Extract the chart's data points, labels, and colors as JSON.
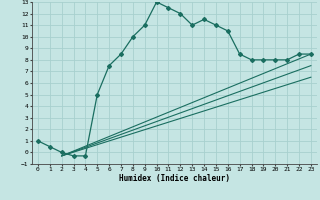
{
  "title": "",
  "xlabel": "Humidex (Indice chaleur)",
  "background_color": "#c5e5e3",
  "grid_color": "#a8d0ce",
  "line_color": "#1a6e60",
  "xlim": [
    -0.5,
    23.5
  ],
  "ylim": [
    -1,
    13
  ],
  "xticks": [
    0,
    1,
    2,
    3,
    4,
    5,
    6,
    7,
    8,
    9,
    10,
    11,
    12,
    13,
    14,
    15,
    16,
    17,
    18,
    19,
    20,
    21,
    22,
    23
  ],
  "yticks": [
    -1,
    0,
    1,
    2,
    3,
    4,
    5,
    6,
    7,
    8,
    9,
    10,
    11,
    12,
    13
  ],
  "main_line_x": [
    0,
    1,
    2,
    3,
    4,
    5,
    6,
    7,
    8,
    9,
    10,
    11,
    12,
    13,
    14,
    15,
    16,
    17,
    18,
    19,
    20,
    21,
    22,
    23
  ],
  "main_line_y": [
    1,
    0.5,
    0,
    -0.3,
    -0.3,
    5,
    7.5,
    8.5,
    10,
    11,
    13,
    12.5,
    12,
    11,
    11.5,
    11,
    10.5,
    8.5,
    8,
    8,
    8,
    8,
    8.5,
    8.5
  ],
  "ref_line1_x": [
    2,
    23
  ],
  "ref_line1_y": [
    -0.3,
    8.5
  ],
  "ref_line2_x": [
    2,
    23
  ],
  "ref_line2_y": [
    -0.3,
    7.5
  ],
  "ref_line3_x": [
    2,
    23
  ],
  "ref_line3_y": [
    -0.3,
    6.5
  ]
}
